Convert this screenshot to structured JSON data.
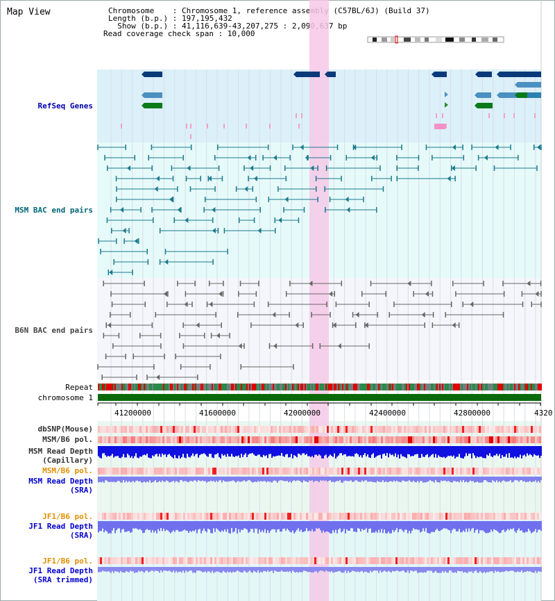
{
  "header": {
    "title": "Map View",
    "chromosome_line": "Chromosome    : Chromosome 1, reference assembly (C57BL/6J) (Build 37)",
    "length_line": "Length (b.p.) : 197,195,432",
    "show_line": "  Show (b.p.) : 41,116,639-43,207,275 : 2,090,637 bp",
    "coverage_line": "Read coverage check span : 10,000"
  },
  "tracks": {
    "refseq": "RefSeq Genes",
    "msm_bac": "MSM BAC end pairs",
    "b6n_bac": "B6N BAC end pairs",
    "repeat": "Repeat",
    "chromosome": "chromosome 1",
    "dbsnp": "dbSNP(Mouse)",
    "msm_b6_pol": "MSM/B6 pol.",
    "msm_read_depth_cap_1": "MSM Read Depth",
    "msm_read_depth_cap_2": "(Capillary)",
    "msm_b6_pol_2": "MSM/B6 pol.",
    "msm_read_depth_sra_1": "MSM Read Depth",
    "msm_read_depth_sra_2": "(SRA)",
    "jf1_b6_pol": "JF1/B6 pol.",
    "jf1_read_depth_sra_1": "JF1 Read Depth",
    "jf1_read_depth_sra_2": "(SRA)",
    "jf1_b6_pol_2": "JF1/B6 pol.",
    "jf1_read_depth_trim_1": "JF1 Read Depth",
    "jf1_read_depth_trim_2": "(SRA trimmed)"
  },
  "axis": {
    "ticks": [
      "41200000",
      "41600000",
      "42000000",
      "42400000",
      "42800000",
      "4320"
    ]
  },
  "colors": {
    "refseq_label": "#0000aa",
    "msm_bac_label": "#006677",
    "b6n_bac_label": "#444444",
    "pol_label": "#e09000",
    "read_depth_label": "#0000cc",
    "highlight": "#f8c8e8"
  }
}
